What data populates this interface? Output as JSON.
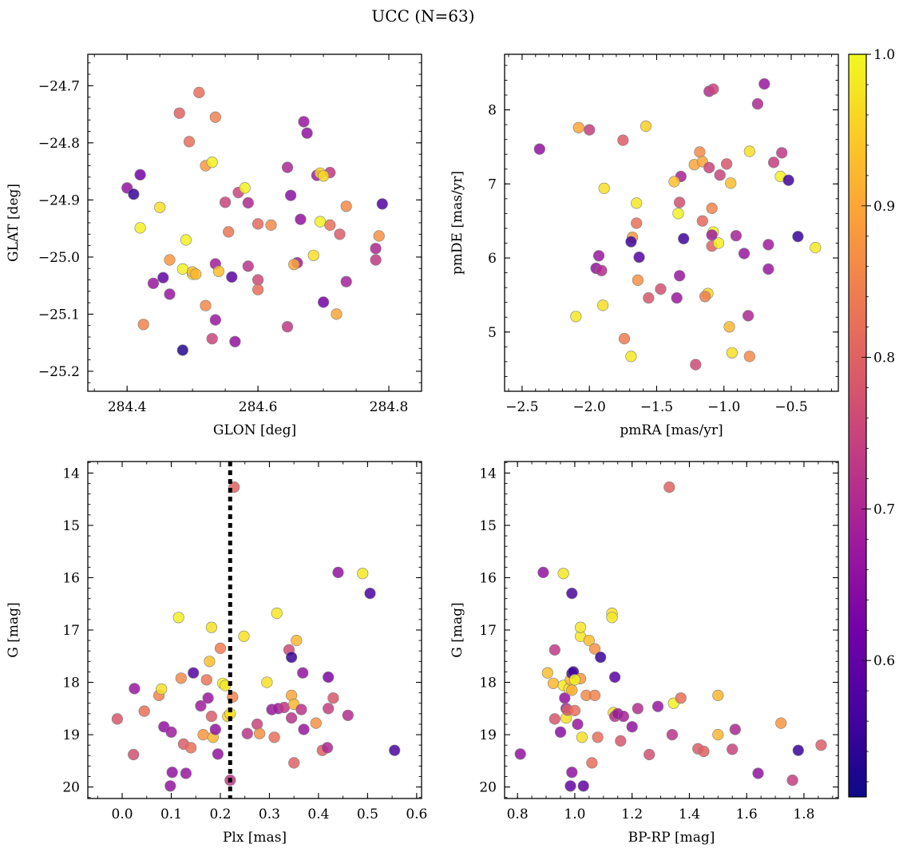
{
  "title": "UCC (N=63)",
  "colorbar": {
    "colormap": "plasma",
    "range": [
      0.51,
      1.0
    ],
    "ticks": [
      0.6,
      0.7,
      0.8,
      0.9,
      1.0
    ],
    "tick_labels": [
      "0.6",
      "0.7",
      "0.8",
      "0.9",
      "1.0"
    ]
  },
  "colors": {
    "plasma_stops": [
      "#0d0887",
      "#46039f",
      "#7201a8",
      "#9c179e",
      "#bd3786",
      "#d8576b",
      "#ed7953",
      "#fb9f3a",
      "#fdca26",
      "#f0f921"
    ],
    "marker_edge": "#7f7f7f",
    "reference_line": "#000000"
  },
  "chart_data": [
    {
      "type": "scatter",
      "id": "glon-glat",
      "xlabel": "GLON [deg]",
      "ylabel": "GLAT [deg]",
      "xlim": [
        284.34,
        284.85
      ],
      "ylim": [
        -25.235,
        -24.645
      ],
      "y_inverted": false,
      "xticks": [
        284.4,
        284.6,
        284.8
      ],
      "xtick_labels": [
        "284.4",
        "284.6",
        "284.8"
      ],
      "yticks": [
        -24.7,
        -24.8,
        -24.9,
        -25.0,
        -25.1,
        -25.2
      ],
      "ytick_labels": [
        "−24.7",
        "−24.8",
        "−24.9",
        "−25.0",
        "−25.1",
        "−25.2"
      ],
      "x": [
        284.51,
        284.48,
        284.535,
        284.495,
        284.52,
        284.53,
        284.42,
        284.4,
        284.41,
        284.45,
        284.42,
        284.49,
        284.465,
        284.485,
        284.5,
        284.5,
        284.535,
        284.54,
        284.44,
        284.455,
        284.465,
        284.52,
        284.535,
        284.425,
        284.53,
        284.485,
        284.55,
        284.555,
        284.565,
        284.56,
        284.57,
        284.58,
        284.585,
        284.6,
        284.62,
        284.585,
        284.6,
        284.6,
        284.645,
        284.65,
        284.645,
        284.67,
        284.675,
        284.69,
        284.695,
        284.71,
        284.665,
        284.695,
        284.71,
        284.725,
        284.735,
        284.79,
        284.785,
        284.78,
        284.78,
        284.66,
        284.655,
        284.685,
        284.7,
        284.735,
        284.72,
        284.7,
        284.505
      ],
      "y": [
        -24.712,
        -24.748,
        -24.755,
        -24.798,
        -24.84,
        -24.834,
        -24.856,
        -24.879,
        -24.89,
        -24.913,
        -24.949,
        -24.97,
        -25.005,
        -25.021,
        -25.03,
        -25.026,
        -25.012,
        -25.025,
        -25.046,
        -25.036,
        -25.065,
        -25.085,
        -25.11,
        -25.118,
        -25.143,
        -25.163,
        -24.904,
        -24.956,
        -25.148,
        -25.035,
        -24.887,
        -24.879,
        -24.905,
        -24.942,
        -24.944,
        -25.016,
        -25.04,
        -25.057,
        -24.843,
        -24.892,
        -25.122,
        -24.763,
        -24.783,
        -24.857,
        -24.853,
        -24.852,
        -24.934,
        -24.938,
        -24.944,
        -24.96,
        -24.911,
        -24.907,
        -24.963,
        -24.985,
        -25.005,
        -25.01,
        -25.013,
        -24.997,
        -25.079,
        -25.043,
        -25.1,
        -24.858,
        -25.03
      ],
      "c": [
        0.82,
        0.8,
        0.85,
        0.82,
        0.88,
        0.99,
        0.62,
        0.66,
        0.55,
        0.97,
        0.99,
        0.99,
        0.88,
        0.99,
        0.97,
        0.93,
        0.68,
        0.93,
        0.67,
        0.6,
        0.67,
        0.86,
        0.67,
        0.85,
        0.75,
        0.53,
        0.75,
        0.83,
        0.66,
        0.59,
        0.75,
        0.99,
        0.7,
        0.81,
        0.86,
        0.72,
        0.76,
        0.82,
        0.7,
        0.65,
        0.73,
        0.67,
        0.66,
        0.68,
        0.95,
        0.73,
        0.66,
        0.99,
        0.82,
        0.79,
        0.86,
        0.58,
        0.87,
        0.7,
        0.73,
        0.68,
        0.9,
        0.97,
        0.62,
        0.69,
        0.9,
        0.96,
        0.92
      ]
    },
    {
      "type": "scatter",
      "id": "pmra-pmde",
      "xlabel": "pmRA [mas/yr]",
      "ylabel": "pmDE [mas/yr]",
      "xlim": [
        -2.63,
        -0.15
      ],
      "ylim": [
        4.2,
        8.75
      ],
      "y_inverted": false,
      "xticks": [
        -2.5,
        -2.0,
        -1.5,
        -1.0,
        -0.5
      ],
      "xtick_labels": [
        "−2.5",
        "−2.0",
        "−1.5",
        "−1.0",
        "−0.5"
      ],
      "yticks": [
        5,
        6,
        7,
        8
      ],
      "ytick_labels": [
        "5",
        "6",
        "7",
        "8"
      ],
      "x": [
        -2.37,
        -2.08,
        -2.0,
        -1.75,
        -1.58,
        -1.89,
        -1.65,
        -1.65,
        -1.68,
        -1.69,
        -1.63,
        -1.93,
        -1.95,
        -1.91,
        -1.64,
        -1.9,
        -2.1,
        -1.74,
        -1.69,
        -1.56,
        -1.47,
        -1.35,
        -1.33,
        -1.3,
        -1.32,
        -1.33,
        -1.34,
        -1.22,
        -1.21,
        -1.18,
        -1.16,
        -1.11,
        -1.08,
        -1.16,
        -1.12,
        -1.14,
        -1.09,
        -1.08,
        -1.04,
        -1.03,
        -1.09,
        -1.11,
        -1.09,
        -0.98,
        -0.96,
        -0.94,
        -0.91,
        -0.95,
        -0.85,
        -0.81,
        -0.81,
        -0.75,
        -0.67,
        -0.63,
        -0.7,
        -0.57,
        -0.58,
        -0.52,
        -0.45,
        -0.82,
        -0.67,
        -0.32,
        -1.37
      ],
      "y": [
        7.47,
        7.76,
        7.73,
        7.59,
        7.78,
        6.94,
        6.74,
        6.47,
        6.28,
        6.22,
        6.01,
        6.03,
        5.86,
        5.83,
        5.7,
        5.36,
        5.21,
        4.91,
        4.67,
        5.46,
        5.58,
        5.46,
        5.76,
        6.26,
        7.1,
        6.75,
        6.6,
        7.26,
        4.56,
        7.43,
        7.3,
        8.25,
        8.28,
        6.5,
        5.52,
        5.48,
        6.16,
        6.35,
        6.2,
        7.12,
        6.31,
        7.22,
        6.67,
        7.27,
        5.07,
        4.72,
        6.3,
        7.01,
        6.06,
        4.67,
        7.44,
        8.08,
        5.85,
        7.29,
        8.35,
        7.42,
        7.1,
        7.05,
        6.29,
        5.22,
        6.18,
        6.14,
        7.03
      ],
      "c": [
        0.66,
        0.9,
        0.74,
        0.79,
        0.95,
        0.97,
        0.98,
        0.82,
        0.88,
        0.56,
        0.58,
        0.67,
        0.66,
        0.71,
        0.87,
        0.97,
        0.98,
        0.84,
        0.98,
        0.78,
        0.77,
        0.67,
        0.67,
        0.56,
        0.69,
        0.77,
        0.99,
        0.9,
        0.76,
        0.86,
        0.9,
        0.71,
        0.75,
        0.81,
        0.96,
        0.84,
        0.8,
        0.99,
        0.99,
        0.75,
        0.68,
        0.75,
        0.85,
        0.78,
        0.92,
        0.97,
        0.69,
        0.93,
        0.67,
        0.86,
        0.97,
        0.7,
        0.67,
        0.74,
        0.67,
        0.73,
        0.99,
        0.56,
        0.55,
        0.7,
        0.68,
        0.98,
        0.93
      ]
    },
    {
      "type": "scatter",
      "id": "plx-g",
      "xlabel": "Plx [mas]",
      "ylabel": "G [mag]",
      "xlim": [
        -0.07,
        0.61
      ],
      "ylim": [
        13.78,
        20.22
      ],
      "y_inverted": true,
      "xticks": [
        0.0,
        0.1,
        0.2,
        0.3,
        0.4,
        0.5,
        0.6
      ],
      "xtick_labels": [
        "0.0",
        "0.1",
        "0.2",
        "0.3",
        "0.4",
        "0.5",
        "0.6"
      ],
      "yticks": [
        14,
        15,
        16,
        17,
        18,
        19,
        20
      ],
      "ytick_labels": [
        "14",
        "15",
        "16",
        "17",
        "18",
        "19",
        "20"
      ],
      "reference_x": 0.22,
      "x": [
        -0.01,
        0.025,
        0.023,
        0.045,
        0.075,
        0.08,
        0.085,
        0.1,
        0.102,
        0.115,
        0.12,
        0.125,
        0.14,
        0.145,
        0.16,
        0.165,
        0.172,
        0.175,
        0.178,
        0.182,
        0.185,
        0.182,
        0.195,
        0.2,
        0.205,
        0.21,
        0.215,
        0.22,
        0.22,
        0.225,
        0.228,
        0.248,
        0.255,
        0.275,
        0.295,
        0.305,
        0.315,
        0.31,
        0.318,
        0.33,
        0.34,
        0.345,
        0.345,
        0.35,
        0.345,
        0.35,
        0.355,
        0.365,
        0.368,
        0.37,
        0.395,
        0.408,
        0.418,
        0.42,
        0.42,
        0.43,
        0.44,
        0.46,
        0.49,
        0.505,
        0.555,
        0.19,
        0.28
      ],
      "y": [
        18.7,
        18.12,
        19.38,
        18.55,
        18.25,
        18.13,
        18.85,
        18.95,
        19.72,
        16.76,
        17.92,
        19.18,
        19.25,
        17.82,
        18.45,
        19.0,
        17.95,
        18.3,
        17.6,
        16.95,
        19.05,
        18.65,
        19.37,
        17.35,
        18.02,
        18.06,
        18.65,
        18.6,
        19.87,
        18.28,
        14.27,
        17.12,
        18.98,
        18.8,
        18.0,
        18.52,
        16.68,
        19.05,
        18.5,
        18.48,
        17.38,
        18.25,
        17.52,
        19.54,
        18.68,
        18.42,
        17.2,
        18.52,
        17.82,
        18.9,
        18.78,
        19.3,
        19.25,
        17.9,
        18.5,
        18.3,
        15.9,
        18.63,
        15.92,
        16.3,
        19.3,
        18.9,
        18.98
      ],
      "c": [
        0.78,
        0.67,
        0.77,
        0.82,
        0.85,
        0.97,
        0.66,
        0.68,
        0.66,
        0.99,
        0.86,
        0.79,
        0.82,
        0.58,
        0.68,
        0.88,
        0.83,
        0.67,
        0.93,
        0.97,
        0.92,
        0.79,
        0.66,
        0.84,
        0.99,
        0.98,
        0.95,
        0.97,
        0.73,
        0.85,
        0.8,
        0.97,
        0.72,
        0.75,
        0.97,
        0.67,
        0.98,
        0.82,
        0.68,
        0.73,
        0.76,
        0.9,
        0.55,
        0.8,
        0.72,
        0.92,
        0.92,
        0.72,
        0.66,
        0.67,
        0.87,
        0.8,
        0.7,
        0.63,
        0.74,
        0.78,
        0.66,
        0.71,
        0.98,
        0.57,
        0.57,
        0.66,
        0.87
      ],
      "extra_points": [
        {
          "x": 0.098,
          "y": 19.98,
          "c": 0.66
        },
        {
          "x": 0.13,
          "y": 19.74,
          "c": 0.67
        }
      ]
    },
    {
      "type": "scatter",
      "id": "bprp-g",
      "xlabel": "BP-RP [mag]",
      "ylabel": "G [mag]",
      "xlim": [
        0.755,
        1.92
      ],
      "ylim": [
        13.78,
        20.22
      ],
      "y_inverted": true,
      "xticks": [
        0.8,
        1.0,
        1.2,
        1.4,
        1.6,
        1.8
      ],
      "xtick_labels": [
        "0.8",
        "1.0",
        "1.2",
        "1.4",
        "1.6",
        "1.8"
      ],
      "yticks": [
        14,
        15,
        16,
        17,
        18,
        19,
        20
      ],
      "ytick_labels": [
        "14",
        "15",
        "16",
        "17",
        "18",
        "19",
        "20"
      ],
      "x": [
        0.81,
        0.89,
        0.96,
        0.93,
        0.905,
        0.925,
        0.93,
        0.95,
        0.96,
        0.97,
        0.965,
        0.97,
        0.975,
        0.98,
        0.985,
        0.99,
        0.99,
        0.995,
        0.99,
        1.0,
        1.01,
        1.02,
        1.02,
        1.02,
        1.025,
        1.04,
        1.05,
        1.06,
        1.07,
        1.07,
        1.08,
        1.09,
        1.13,
        1.13,
        1.135,
        1.14,
        1.14,
        1.15,
        1.16,
        1.17,
        1.2,
        1.22,
        1.26,
        1.29,
        1.33,
        1.34,
        1.345,
        1.37,
        1.43,
        1.45,
        1.5,
        1.5,
        1.55,
        1.56,
        1.64,
        1.72,
        1.76,
        1.78,
        1.86,
        0.99,
        0.985,
        1.0,
        1.03
      ],
      "y": [
        19.37,
        15.9,
        15.92,
        17.38,
        17.82,
        18.02,
        18.7,
        18.95,
        18.06,
        18.5,
        18.3,
        18.68,
        18.53,
        18.12,
        17.95,
        17.83,
        16.3,
        17.8,
        19.72,
        18.54,
        18.8,
        17.12,
        16.95,
        17.93,
        19.05,
        18.25,
        17.2,
        19.54,
        18.25,
        17.36,
        19.05,
        17.52,
        16.68,
        16.76,
        18.58,
        18.65,
        17.9,
        18.6,
        19.12,
        18.65,
        18.85,
        18.5,
        19.38,
        18.46,
        14.27,
        19.0,
        18.4,
        18.3,
        19.27,
        19.32,
        18.25,
        19.0,
        19.28,
        18.9,
        19.74,
        18.78,
        19.87,
        19.3,
        19.2,
        18.15,
        19.98,
        17.95,
        19.98
      ],
      "c": [
        0.66,
        0.66,
        0.98,
        0.73,
        0.93,
        0.92,
        0.78,
        0.65,
        0.98,
        0.69,
        0.66,
        0.97,
        0.79,
        0.97,
        0.92,
        0.57,
        0.57,
        0.56,
        0.66,
        0.82,
        0.67,
        0.98,
        0.98,
        0.88,
        0.97,
        0.86,
        0.93,
        0.82,
        0.85,
        0.87,
        0.82,
        0.55,
        0.97,
        0.98,
        0.97,
        0.72,
        0.59,
        0.67,
        0.78,
        0.69,
        0.66,
        0.71,
        0.77,
        0.67,
        0.8,
        0.72,
        0.99,
        0.82,
        0.79,
        0.8,
        0.92,
        0.92,
        0.75,
        0.7,
        0.66,
        0.88,
        0.74,
        0.55,
        0.79,
        0.91,
        0.6,
        0.99,
        0.6
      ]
    }
  ]
}
